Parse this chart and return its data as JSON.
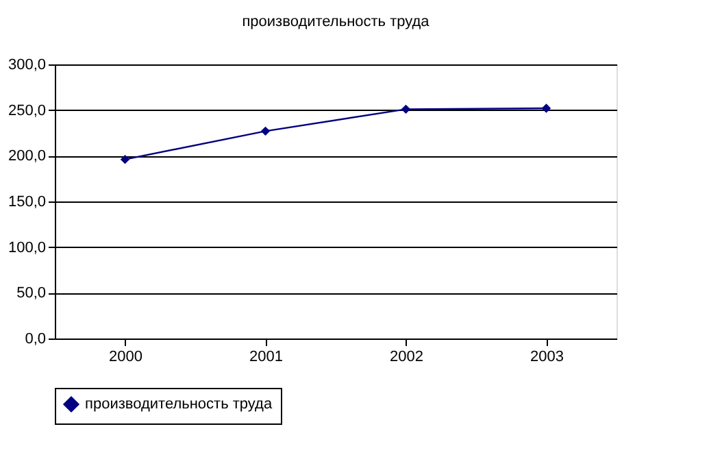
{
  "chart_data": {
    "type": "line",
    "title": "производительность труда",
    "categories": [
      "2000",
      "2001",
      "2002",
      "2003"
    ],
    "series": [
      {
        "name": "производительность труда",
        "color": "#000080",
        "values": [
          196,
          227,
          251,
          252
        ]
      }
    ],
    "ylim": [
      0,
      300
    ],
    "yticks": [
      {
        "value": 0,
        "label": "0,0"
      },
      {
        "value": 50,
        "label": "50,0"
      },
      {
        "value": 100,
        "label": "100,0"
      },
      {
        "value": 150,
        "label": "150,0"
      },
      {
        "value": 200,
        "label": "200,0"
      },
      {
        "value": 250,
        "label": "250,0"
      },
      {
        "value": 300,
        "label": "300,0"
      }
    ],
    "grid": "y",
    "legend": "bottom",
    "marker": "diamond",
    "line_style": "solid"
  }
}
